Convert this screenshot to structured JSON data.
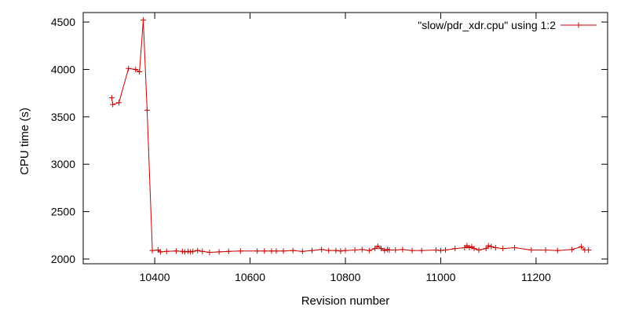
{
  "chart_data": {
    "type": "line",
    "title": "",
    "xlabel": "Revision number",
    "ylabel": "CPU time (s)",
    "xlim": [
      10250,
      11350
    ],
    "ylim": [
      1950,
      4600
    ],
    "xticks": [
      10400,
      10600,
      10800,
      11000,
      11200
    ],
    "yticks": [
      2000,
      2500,
      3000,
      3500,
      4000,
      4500
    ],
    "tick_labels_x": [
      "10400",
      "10600",
      "10800",
      "11000",
      "11200"
    ],
    "tick_labels_y": [
      "2000",
      "2500",
      "3000",
      "3500",
      "4000",
      "4500"
    ],
    "grid": false,
    "legend_position": "top-right",
    "series": [
      {
        "name": "\"slow/pdr_xdr.cpu\" using 1:2",
        "color": "#cc0000",
        "marker": "plus",
        "x": [
          10310,
          10312,
          10325,
          10345,
          10360,
          10368,
          10376,
          10384,
          10395,
          10407,
          10412,
          10425,
          10445,
          10458,
          10463,
          10470,
          10475,
          10480,
          10490,
          10500,
          10515,
          10535,
          10555,
          10580,
          10615,
          10630,
          10645,
          10655,
          10670,
          10690,
          10710,
          10730,
          10750,
          10765,
          10780,
          10790,
          10800,
          10820,
          10835,
          10850,
          10862,
          10868,
          10875,
          10882,
          10888,
          10892,
          10905,
          10920,
          10940,
          10960,
          10990,
          11000,
          11010,
          11030,
          11050,
          11055,
          11060,
          11065,
          11070,
          11080,
          11095,
          11100,
          11106,
          11115,
          11130,
          11155,
          11190,
          11220,
          11245,
          11275,
          11295,
          11302,
          11310
        ],
        "y": [
          3700,
          3630,
          3650,
          4010,
          4000,
          3975,
          4520,
          3570,
          2090,
          2095,
          2075,
          2080,
          2085,
          2080,
          2075,
          2080,
          2075,
          2080,
          2090,
          2080,
          2070,
          2075,
          2080,
          2085,
          2085,
          2085,
          2085,
          2085,
          2085,
          2090,
          2080,
          2090,
          2100,
          2090,
          2090,
          2085,
          2090,
          2095,
          2100,
          2090,
          2110,
          2135,
          2110,
          2090,
          2100,
          2095,
          2095,
          2100,
          2090,
          2090,
          2095,
          2090,
          2095,
          2110,
          2120,
          2140,
          2120,
          2130,
          2110,
          2095,
          2110,
          2140,
          2130,
          2120,
          2110,
          2120,
          2095,
          2095,
          2090,
          2100,
          2130,
          2095,
          2095
        ]
      }
    ]
  }
}
